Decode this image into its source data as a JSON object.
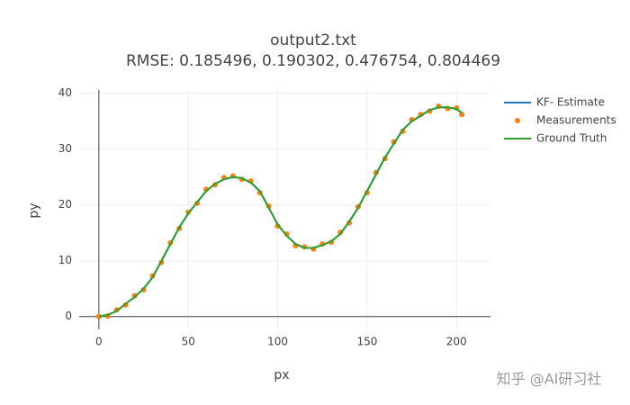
{
  "chart_data": {
    "type": "line",
    "title": "output2.txt",
    "subtitle": "RMSE: 0.185496, 0.190302, 0.476754, 0.804469",
    "x_label": "px",
    "y_label": "py",
    "x": [
      0,
      5,
      10,
      15,
      20,
      25,
      30,
      35,
      40,
      45,
      50,
      55,
      60,
      65,
      70,
      75,
      80,
      85,
      90,
      95,
      100,
      105,
      110,
      115,
      120,
      125,
      130,
      135,
      140,
      145,
      150,
      155,
      160,
      165,
      170,
      175,
      180,
      185,
      190,
      195,
      200,
      203
    ],
    "series": [
      {
        "name": "KF- Estimate",
        "color": "#1f77b4",
        "mode": "lines",
        "values": [
          0,
          0.3,
          1,
          2.3,
          3.5,
          5,
          7,
          10,
          13,
          16,
          18.5,
          20.5,
          22.5,
          23.8,
          24.6,
          25,
          24.8,
          24,
          22.5,
          19.5,
          16.5,
          14.5,
          13,
          12.3,
          12.3,
          12.8,
          13.5,
          14.8,
          17,
          19.5,
          22.5,
          25.5,
          28.5,
          31,
          33.5,
          35,
          36,
          37,
          37.5,
          37.5,
          37.2,
          36.5
        ]
      },
      {
        "name": "Measurements",
        "color": "#ff7f0e",
        "mode": "markers",
        "values": [
          0,
          0.1,
          1.2,
          2.1,
          3.7,
          4.8,
          7.3,
          9.7,
          13.2,
          15.8,
          18.7,
          20.3,
          22.8,
          23.6,
          24.9,
          25.2,
          24.6,
          24.3,
          22.2,
          19.8,
          16.2,
          14.8,
          12.7,
          12.5,
          12.1,
          13,
          13.3,
          15.1,
          16.8,
          19.7,
          22.2,
          25.8,
          28.3,
          31.3,
          33.2,
          35.3,
          36.2,
          36.8,
          37.7,
          37.3,
          37.4,
          36.2
        ]
      },
      {
        "name": "Ground Truth",
        "color": "#2ca02c",
        "mode": "lines",
        "values": [
          0,
          0.3,
          1,
          2.3,
          3.5,
          5,
          7,
          10,
          13,
          16,
          18.5,
          20.5,
          22.5,
          23.8,
          24.6,
          25,
          24.8,
          24,
          22.5,
          19.5,
          16.5,
          14.5,
          13,
          12.3,
          12.3,
          12.8,
          13.5,
          14.8,
          17,
          19.5,
          22.5,
          25.5,
          28.5,
          31,
          33.5,
          35,
          36,
          37,
          37.5,
          37.5,
          37.2,
          36.5
        ]
      }
    ],
    "xlim": [
      -11,
      219
    ],
    "ylim": [
      -2.3,
      40.6
    ],
    "xticks": [
      0,
      50,
      100,
      150,
      200
    ],
    "yticks": [
      0,
      10,
      20,
      30,
      40
    ],
    "grid": true,
    "legend": "top-right"
  },
  "watermark": "知乎 @AI研习社"
}
